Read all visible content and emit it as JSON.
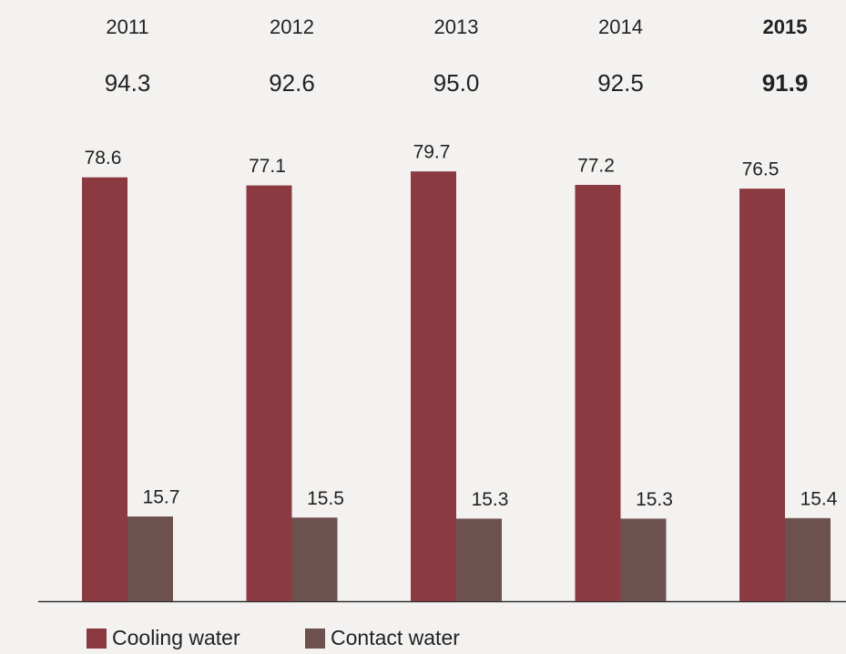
{
  "chart_data": {
    "type": "bar",
    "categories": [
      "2011",
      "2012",
      "2013",
      "2014",
      "2015"
    ],
    "totals": [
      "94.3",
      "92.6",
      "95.0",
      "92.5",
      "91.9"
    ],
    "series": [
      {
        "name": "Cooling water",
        "color": "#8b3a41",
        "values": [
          78.6,
          77.1,
          79.7,
          77.2,
          76.5
        ]
      },
      {
        "name": "Contact water",
        "color": "#6d514e",
        "values": [
          15.7,
          15.5,
          15.3,
          15.3,
          15.4
        ]
      }
    ]
  }
}
